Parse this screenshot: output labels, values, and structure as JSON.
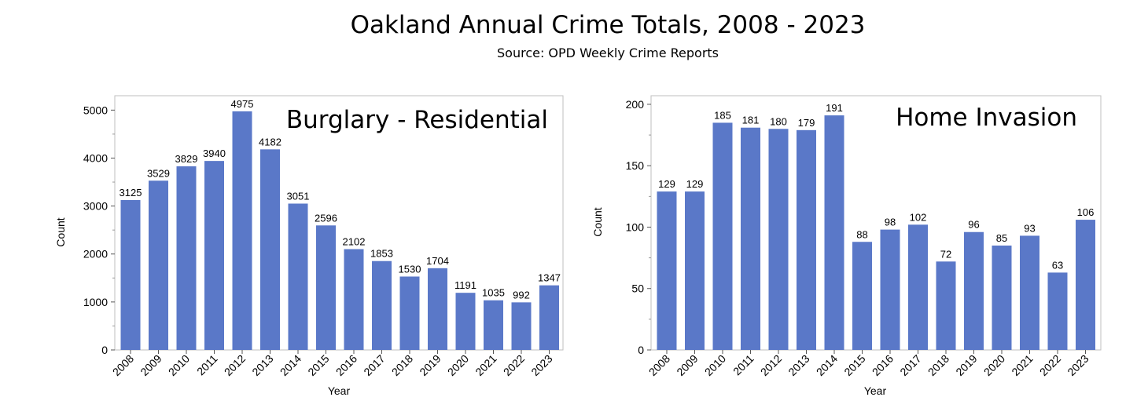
{
  "title": "Oakland Annual Crime Totals, 2008 - 2023",
  "subtitle": "Source: OPD Weekly Crime Reports",
  "colors": {
    "bar": "#5a78c8",
    "frame": "#bfbfbf"
  },
  "chart_data": [
    {
      "type": "bar",
      "title": "Burglary - Residential",
      "xlabel": "Year",
      "ylabel": "Count",
      "ylim": [
        0,
        5300
      ],
      "yticks": [
        0,
        1000,
        2000,
        3000,
        4000,
        5000
      ],
      "categories": [
        "2008",
        "2009",
        "2010",
        "2011",
        "2012",
        "2013",
        "2014",
        "2015",
        "2016",
        "2017",
        "2018",
        "2019",
        "2020",
        "2021",
        "2022",
        "2023"
      ],
      "values": [
        3125,
        3529,
        3829,
        3940,
        4975,
        4182,
        3051,
        2596,
        2102,
        1853,
        1530,
        1704,
        1191,
        1035,
        992,
        1347
      ],
      "grid": false,
      "data_labels": true
    },
    {
      "type": "bar",
      "title": "Home Invasion",
      "xlabel": "Year",
      "ylabel": "Count",
      "ylim": [
        0,
        207
      ],
      "yticks": [
        0,
        50,
        100,
        150,
        200
      ],
      "categories": [
        "2008",
        "2009",
        "2010",
        "2011",
        "2012",
        "2013",
        "2014",
        "2015",
        "2016",
        "2017",
        "2018",
        "2019",
        "2020",
        "2021",
        "2022",
        "2023"
      ],
      "values": [
        129,
        129,
        185,
        181,
        180,
        179,
        191,
        88,
        98,
        102,
        72,
        96,
        85,
        93,
        63,
        106
      ],
      "grid": false,
      "data_labels": true
    }
  ]
}
